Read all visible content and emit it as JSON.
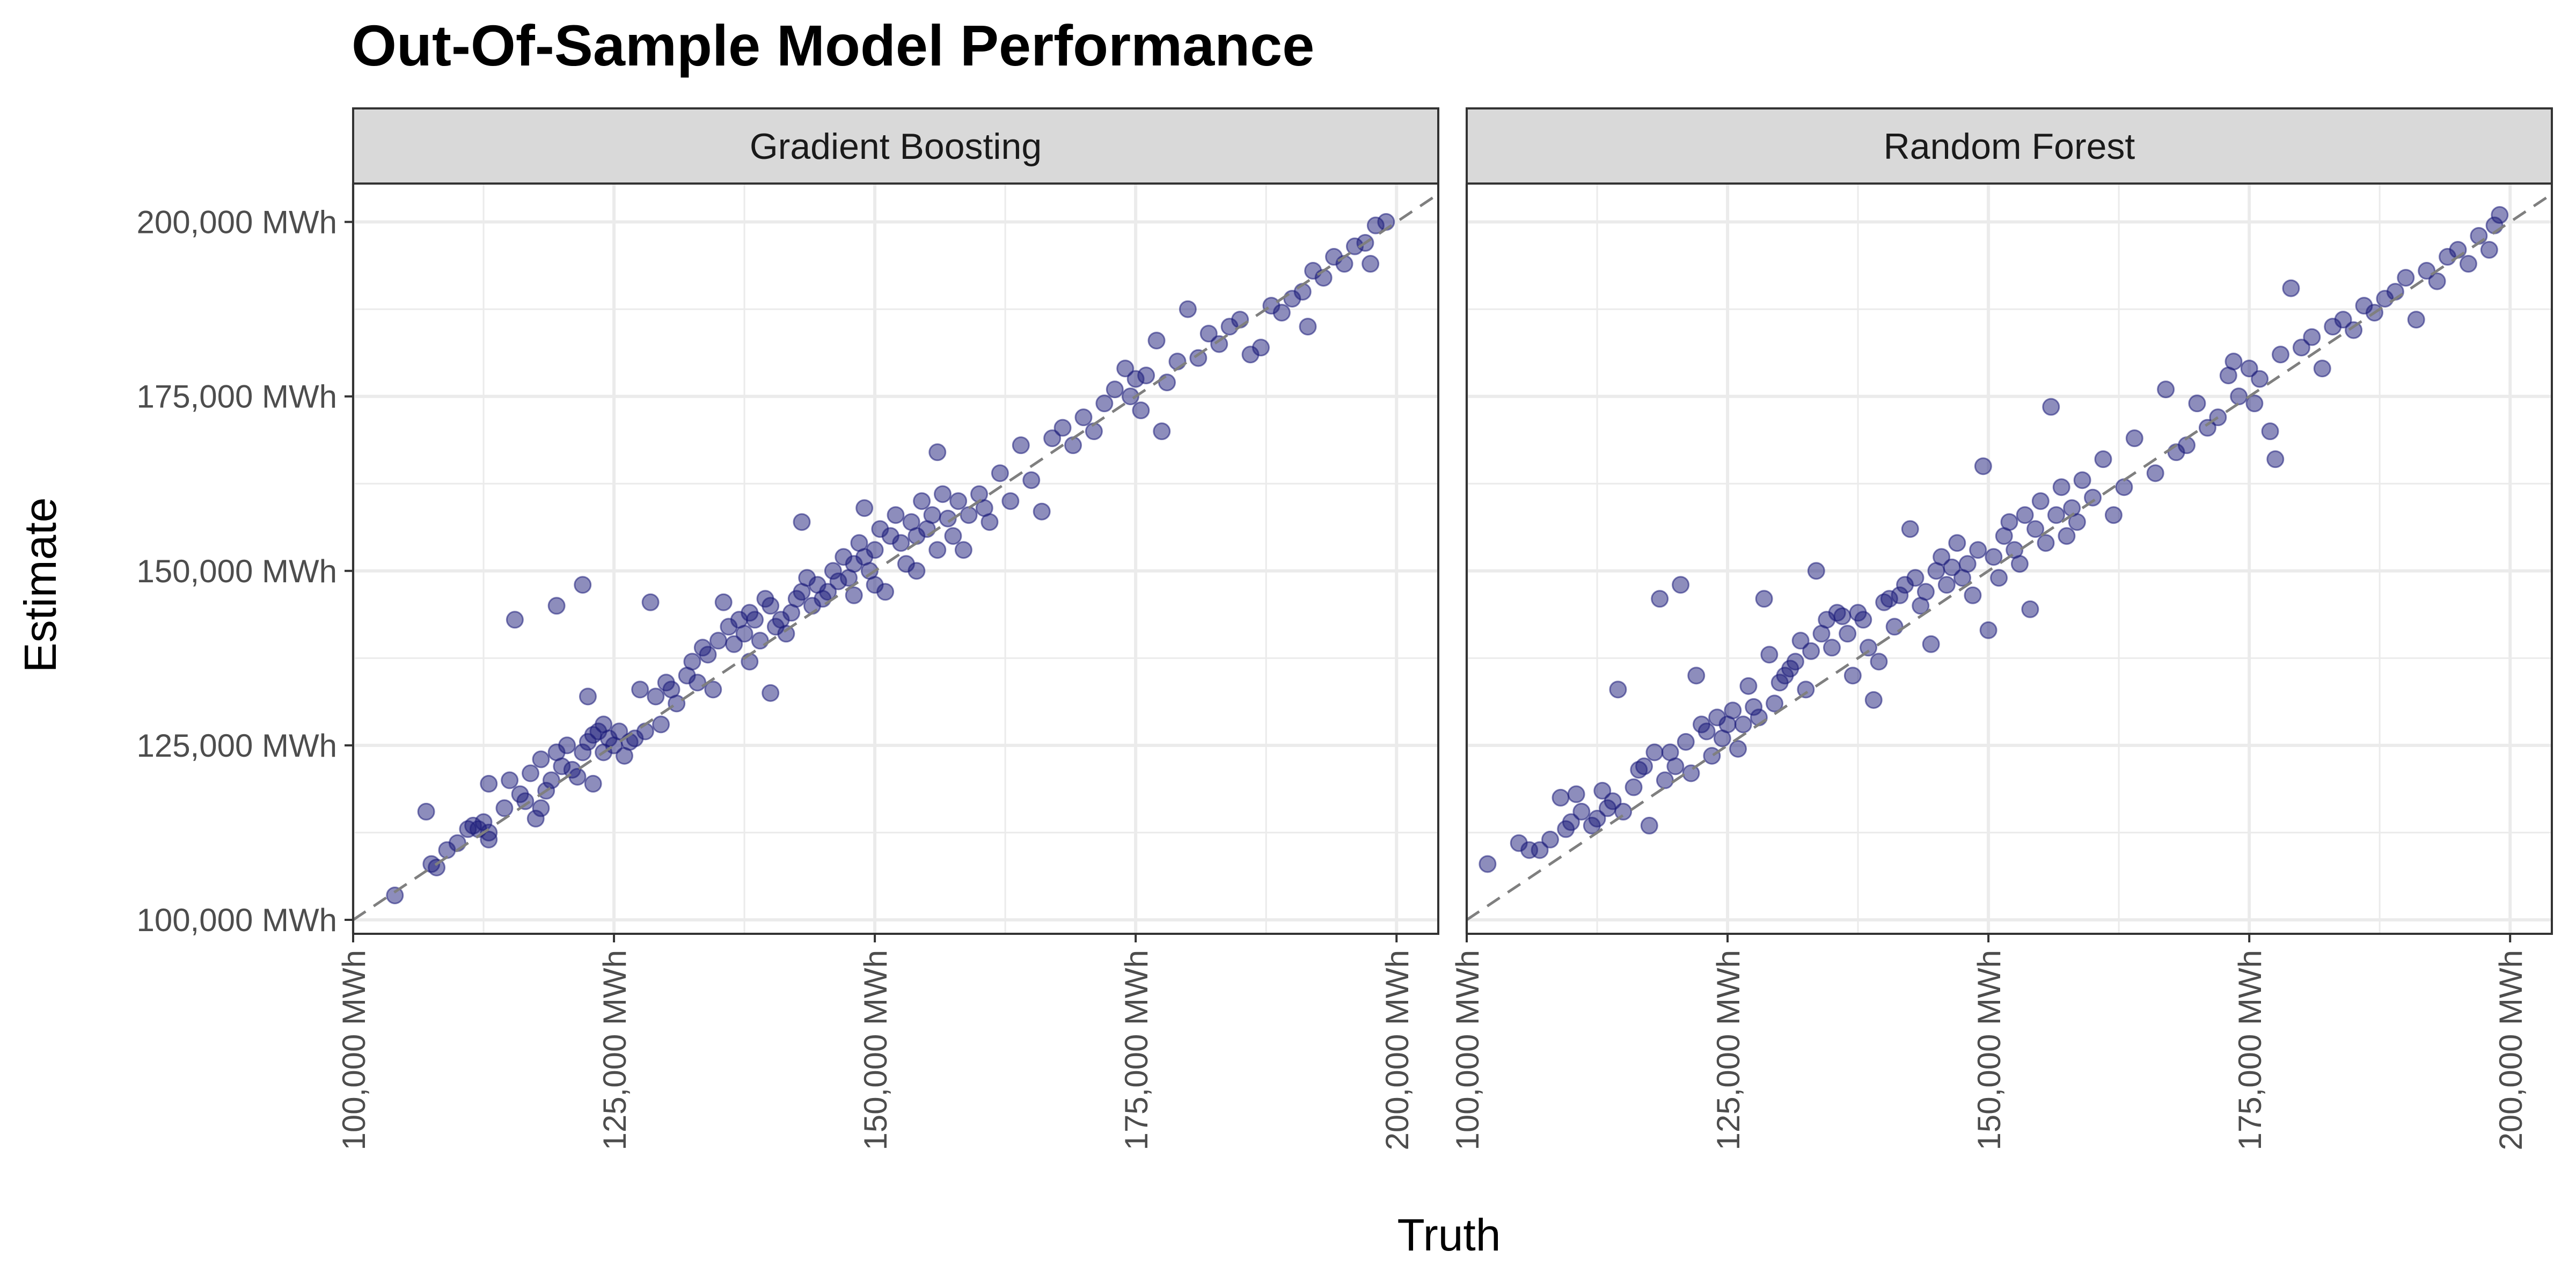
{
  "title": "Out-Of-Sample Model Performance",
  "xlabel": "Truth",
  "ylabel": "Estimate",
  "colors": {
    "point": "#1b1b7a",
    "reference_line": "#7f7f7f",
    "strip_fill": "#d9d9d9",
    "grid": "#ebebeb",
    "panel_border": "#333333"
  },
  "axis": {
    "x_ticks": [
      100000,
      125000,
      150000,
      175000,
      200000
    ],
    "x_tick_labels": [
      "100,000 MWh",
      "125,000 MWh",
      "150,000 MWh",
      "175,000 MWh",
      "200,000 MWh"
    ],
    "y_ticks": [
      100000,
      125000,
      150000,
      175000,
      200000
    ],
    "y_tick_labels": [
      "100,000 MWh",
      "125,000 MWh",
      "150,000 MWh",
      "175,000 MWh",
      "200,000 MWh"
    ]
  },
  "chart_data": [
    {
      "type": "scatter",
      "panel": "Gradient Boosting",
      "xlim": [
        100000,
        204000
      ],
      "ylim": [
        98000,
        205500
      ],
      "reference_line": "y = x",
      "grid": true,
      "points": [
        [
          104000,
          103500
        ],
        [
          107000,
          115500
        ],
        [
          107500,
          108000
        ],
        [
          108000,
          107500
        ],
        [
          109000,
          110000
        ],
        [
          110000,
          111000
        ],
        [
          111000,
          113000
        ],
        [
          111500,
          113500
        ],
        [
          112000,
          113000
        ],
        [
          112500,
          114000
        ],
        [
          113000,
          111500
        ],
        [
          113000,
          112500
        ],
        [
          113000,
          119500
        ],
        [
          114500,
          116000
        ],
        [
          115000,
          120000
        ],
        [
          115500,
          143000
        ],
        [
          116000,
          118000
        ],
        [
          116500,
          117000
        ],
        [
          117000,
          121000
        ],
        [
          117500,
          114500
        ],
        [
          118000,
          116000
        ],
        [
          118000,
          123000
        ],
        [
          118500,
          118500
        ],
        [
          119000,
          120000
        ],
        [
          119500,
          124000
        ],
        [
          119500,
          145000
        ],
        [
          120000,
          122000
        ],
        [
          120500,
          125000
        ],
        [
          121000,
          121500
        ],
        [
          121500,
          120500
        ],
        [
          122000,
          148000
        ],
        [
          122000,
          124000
        ],
        [
          122500,
          125500
        ],
        [
          122500,
          132000
        ],
        [
          123000,
          126500
        ],
        [
          123000,
          119500
        ],
        [
          123500,
          127000
        ],
        [
          124000,
          128000
        ],
        [
          124000,
          124000
        ],
        [
          124500,
          126000
        ],
        [
          125000,
          125000
        ],
        [
          125500,
          127000
        ],
        [
          126000,
          123500
        ],
        [
          126500,
          125500
        ],
        [
          127000,
          126000
        ],
        [
          127500,
          133000
        ],
        [
          128000,
          127000
        ],
        [
          128500,
          145500
        ],
        [
          129000,
          132000
        ],
        [
          129500,
          128000
        ],
        [
          130000,
          134000
        ],
        [
          130500,
          133000
        ],
        [
          131000,
          131000
        ],
        [
          132000,
          135000
        ],
        [
          132500,
          137000
        ],
        [
          133000,
          134000
        ],
        [
          133500,
          139000
        ],
        [
          134000,
          138000
        ],
        [
          134500,
          133000
        ],
        [
          135000,
          140000
        ],
        [
          135500,
          145500
        ],
        [
          136000,
          142000
        ],
        [
          136500,
          139500
        ],
        [
          137000,
          143000
        ],
        [
          137500,
          141000
        ],
        [
          138000,
          144000
        ],
        [
          138000,
          137000
        ],
        [
          138500,
          143000
        ],
        [
          139000,
          140000
        ],
        [
          139500,
          146000
        ],
        [
          140000,
          132500
        ],
        [
          140000,
          145000
        ],
        [
          140500,
          142000
        ],
        [
          141000,
          143000
        ],
        [
          141500,
          141000
        ],
        [
          142000,
          144000
        ],
        [
          142500,
          146000
        ],
        [
          143000,
          157000
        ],
        [
          143000,
          147000
        ],
        [
          143500,
          149000
        ],
        [
          144000,
          145000
        ],
        [
          144500,
          148000
        ],
        [
          145000,
          146000
        ],
        [
          145500,
          147000
        ],
        [
          146000,
          150000
        ],
        [
          146500,
          148500
        ],
        [
          147000,
          152000
        ],
        [
          147500,
          149000
        ],
        [
          148000,
          151000
        ],
        [
          148000,
          146500
        ],
        [
          148500,
          154000
        ],
        [
          149000,
          159000
        ],
        [
          149000,
          152000
        ],
        [
          149500,
          150000
        ],
        [
          150000,
          148000
        ],
        [
          150000,
          153000
        ],
        [
          150500,
          156000
        ],
        [
          151000,
          147000
        ],
        [
          151500,
          155000
        ],
        [
          152000,
          158000
        ],
        [
          152500,
          154000
        ],
        [
          153000,
          151000
        ],
        [
          153500,
          157000
        ],
        [
          154000,
          155000
        ],
        [
          154000,
          150000
        ],
        [
          154500,
          160000
        ],
        [
          155000,
          156000
        ],
        [
          155500,
          158000
        ],
        [
          156000,
          167000
        ],
        [
          156000,
          153000
        ],
        [
          156500,
          161000
        ],
        [
          157000,
          157500
        ],
        [
          157500,
          155000
        ],
        [
          158000,
          160000
        ],
        [
          158500,
          153000
        ],
        [
          159000,
          158000
        ],
        [
          160000,
          161000
        ],
        [
          160500,
          159000
        ],
        [
          161000,
          157000
        ],
        [
          162000,
          164000
        ],
        [
          163000,
          160000
        ],
        [
          164000,
          168000
        ],
        [
          165000,
          163000
        ],
        [
          166000,
          158500
        ],
        [
          167000,
          169000
        ],
        [
          168000,
          170500
        ],
        [
          169000,
          168000
        ],
        [
          170000,
          172000
        ],
        [
          171000,
          170000
        ],
        [
          172000,
          174000
        ],
        [
          173000,
          176000
        ],
        [
          174000,
          179000
        ],
        [
          174500,
          175000
        ],
        [
          175000,
          177500
        ],
        [
          175500,
          173000
        ],
        [
          176000,
          178000
        ],
        [
          177000,
          183000
        ],
        [
          177500,
          170000
        ],
        [
          178000,
          177000
        ],
        [
          179000,
          180000
        ],
        [
          180000,
          187500
        ],
        [
          181000,
          180500
        ],
        [
          182000,
          184000
        ],
        [
          183000,
          182500
        ],
        [
          184000,
          185000
        ],
        [
          185000,
          186000
        ],
        [
          186000,
          181000
        ],
        [
          187000,
          182000
        ],
        [
          188000,
          188000
        ],
        [
          189000,
          187000
        ],
        [
          190000,
          189000
        ],
        [
          191000,
          190000
        ],
        [
          191500,
          185000
        ],
        [
          192000,
          193000
        ],
        [
          193000,
          192000
        ],
        [
          194000,
          195000
        ],
        [
          195000,
          194000
        ],
        [
          196000,
          196500
        ],
        [
          197000,
          197000
        ],
        [
          197500,
          194000
        ],
        [
          198000,
          199500
        ],
        [
          199000,
          200000
        ]
      ]
    },
    {
      "type": "scatter",
      "panel": "Random Forest",
      "xlim": [
        100000,
        204000
      ],
      "ylim": [
        98000,
        205500
      ],
      "reference_line": "y = x",
      "grid": true,
      "points": [
        [
          102000,
          108000
        ],
        [
          105000,
          111000
        ],
        [
          106000,
          110000
        ],
        [
          107000,
          110000
        ],
        [
          108000,
          111500
        ],
        [
          109000,
          117500
        ],
        [
          109500,
          113000
        ],
        [
          110000,
          114000
        ],
        [
          110500,
          118000
        ],
        [
          111000,
          115500
        ],
        [
          112000,
          113500
        ],
        [
          112500,
          114500
        ],
        [
          113000,
          118500
        ],
        [
          113500,
          116000
        ],
        [
          114000,
          117000
        ],
        [
          114500,
          133000
        ],
        [
          115000,
          115500
        ],
        [
          116000,
          119000
        ],
        [
          116500,
          121500
        ],
        [
          117000,
          122000
        ],
        [
          117500,
          113500
        ],
        [
          118000,
          124000
        ],
        [
          118500,
          146000
        ],
        [
          119000,
          120000
        ],
        [
          119500,
          124000
        ],
        [
          120000,
          122000
        ],
        [
          120500,
          148000
        ],
        [
          121000,
          125500
        ],
        [
          121500,
          121000
        ],
        [
          122000,
          135000
        ],
        [
          122500,
          128000
        ],
        [
          123000,
          127000
        ],
        [
          123500,
          123500
        ],
        [
          124000,
          129000
        ],
        [
          124500,
          126000
        ],
        [
          125000,
          128000
        ],
        [
          125500,
          130000
        ],
        [
          126000,
          124500
        ],
        [
          126500,
          128000
        ],
        [
          127000,
          133500
        ],
        [
          127500,
          130500
        ],
        [
          128000,
          129000
        ],
        [
          128500,
          146000
        ],
        [
          129000,
          138000
        ],
        [
          129500,
          131000
        ],
        [
          130000,
          134000
        ],
        [
          130500,
          135000
        ],
        [
          131000,
          136000
        ],
        [
          131500,
          137000
        ],
        [
          132000,
          140000
        ],
        [
          132500,
          133000
        ],
        [
          133000,
          138500
        ],
        [
          133500,
          150000
        ],
        [
          134000,
          141000
        ],
        [
          134500,
          143000
        ],
        [
          135000,
          139000
        ],
        [
          135500,
          144000
        ],
        [
          136000,
          143500
        ],
        [
          136500,
          141000
        ],
        [
          137000,
          135000
        ],
        [
          137500,
          144000
        ],
        [
          138000,
          143000
        ],
        [
          138500,
          139000
        ],
        [
          139000,
          131500
        ],
        [
          139500,
          137000
        ],
        [
          140000,
          145500
        ],
        [
          140500,
          146000
        ],
        [
          141000,
          142000
        ],
        [
          141500,
          146500
        ],
        [
          142000,
          148000
        ],
        [
          142500,
          156000
        ],
        [
          143000,
          149000
        ],
        [
          143500,
          145000
        ],
        [
          144000,
          147000
        ],
        [
          144500,
          139500
        ],
        [
          145000,
          150000
        ],
        [
          145500,
          152000
        ],
        [
          146000,
          148000
        ],
        [
          146500,
          150500
        ],
        [
          147000,
          154000
        ],
        [
          147500,
          149000
        ],
        [
          148000,
          151000
        ],
        [
          148500,
          146500
        ],
        [
          149000,
          153000
        ],
        [
          149500,
          165000
        ],
        [
          150000,
          141500
        ],
        [
          150500,
          152000
        ],
        [
          151000,
          149000
        ],
        [
          151500,
          155000
        ],
        [
          152000,
          157000
        ],
        [
          152500,
          153000
        ],
        [
          153000,
          151000
        ],
        [
          153500,
          158000
        ],
        [
          154000,
          144500
        ],
        [
          154500,
          156000
        ],
        [
          155000,
          160000
        ],
        [
          155500,
          154000
        ],
        [
          156000,
          173500
        ],
        [
          156500,
          158000
        ],
        [
          157000,
          162000
        ],
        [
          157500,
          155000
        ],
        [
          158000,
          159000
        ],
        [
          158500,
          157000
        ],
        [
          159000,
          163000
        ],
        [
          160000,
          160500
        ],
        [
          161000,
          166000
        ],
        [
          162000,
          158000
        ],
        [
          163000,
          162000
        ],
        [
          164000,
          169000
        ],
        [
          166000,
          164000
        ],
        [
          167000,
          176000
        ],
        [
          168000,
          167000
        ],
        [
          169000,
          168000
        ],
        [
          170000,
          174000
        ],
        [
          171000,
          170500
        ],
        [
          172000,
          172000
        ],
        [
          173000,
          178000
        ],
        [
          173500,
          180000
        ],
        [
          174000,
          175000
        ],
        [
          175000,
          179000
        ],
        [
          175500,
          174000
        ],
        [
          176000,
          177500
        ],
        [
          177000,
          170000
        ],
        [
          177500,
          166000
        ],
        [
          178000,
          181000
        ],
        [
          179000,
          190500
        ],
        [
          180000,
          182000
        ],
        [
          181000,
          183500
        ],
        [
          182000,
          179000
        ],
        [
          183000,
          185000
        ],
        [
          184000,
          186000
        ],
        [
          185000,
          184500
        ],
        [
          186000,
          188000
        ],
        [
          187000,
          187000
        ],
        [
          188000,
          189000
        ],
        [
          189000,
          190000
        ],
        [
          190000,
          192000
        ],
        [
          191000,
          186000
        ],
        [
          192000,
          193000
        ],
        [
          193000,
          191500
        ],
        [
          194000,
          195000
        ],
        [
          195000,
          196000
        ],
        [
          196000,
          194000
        ],
        [
          197000,
          198000
        ],
        [
          198000,
          196000
        ],
        [
          198500,
          199500
        ],
        [
          199000,
          201000
        ]
      ]
    }
  ]
}
